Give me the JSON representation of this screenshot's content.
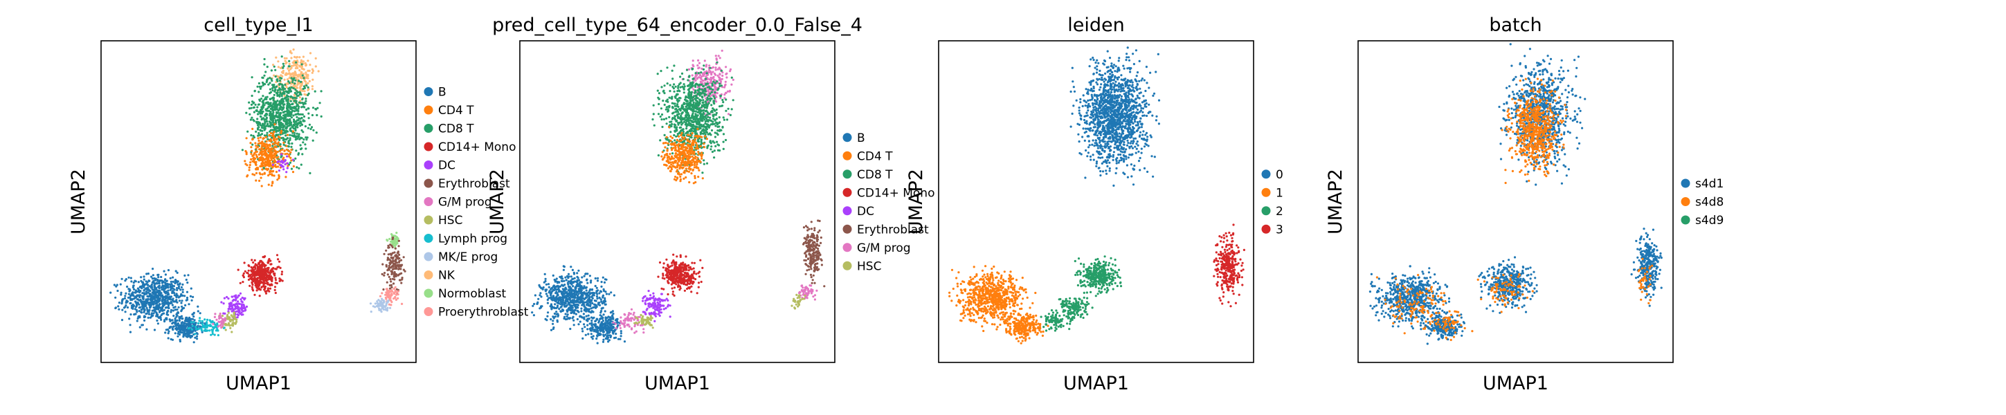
{
  "chart_data": [
    {
      "type": "scatter",
      "title": "cell_type_l1",
      "xlabel": "UMAP1",
      "ylabel": "UMAP2",
      "grid": false,
      "legend": "right",
      "series": [
        {
          "name": "B",
          "color": "#1f77b4"
        },
        {
          "name": "CD4 T",
          "color": "#ff7f0e"
        },
        {
          "name": "CD8 T",
          "color": "#279e68"
        },
        {
          "name": "CD14+ Mono",
          "color": "#d62728"
        },
        {
          "name": "DC",
          "color": "#aa40fc"
        },
        {
          "name": "Erythroblast",
          "color": "#8c564b"
        },
        {
          "name": "G/M prog",
          "color": "#e377c2"
        },
        {
          "name": "HSC",
          "color": "#b5bd61"
        },
        {
          "name": "Lymph prog",
          "color": "#17becf"
        },
        {
          "name": "MK/E prog",
          "color": "#aec7e8"
        },
        {
          "name": "NK",
          "color": "#ffbb78"
        },
        {
          "name": "Normoblast",
          "color": "#98df8a"
        },
        {
          "name": "Proerythroblast",
          "color": "#ff9896"
        }
      ],
      "clusters": [
        {
          "series": "B",
          "cx": 0.17,
          "cy": 0.2,
          "rx": 0.11,
          "ry": 0.08,
          "n": 700
        },
        {
          "series": "B",
          "cx": 0.27,
          "cy": 0.11,
          "rx": 0.06,
          "ry": 0.04,
          "n": 250
        },
        {
          "series": "Lymph prog",
          "cx": 0.34,
          "cy": 0.11,
          "rx": 0.05,
          "ry": 0.03,
          "n": 80
        },
        {
          "series": "NK",
          "cx": 0.62,
          "cy": 0.89,
          "rx": 0.07,
          "ry": 0.08,
          "n": 250
        },
        {
          "series": "CD8 T",
          "cx": 0.57,
          "cy": 0.77,
          "rx": 0.1,
          "ry": 0.14,
          "n": 900
        },
        {
          "series": "CD4 T",
          "cx": 0.53,
          "cy": 0.64,
          "rx": 0.07,
          "ry": 0.08,
          "n": 350
        },
        {
          "series": "DC",
          "cx": 0.58,
          "cy": 0.62,
          "rx": 0.03,
          "ry": 0.03,
          "n": 25
        },
        {
          "series": "CD14+ Mono",
          "cx": 0.51,
          "cy": 0.27,
          "rx": 0.06,
          "ry": 0.05,
          "n": 350
        },
        {
          "series": "DC",
          "cx": 0.43,
          "cy": 0.17,
          "rx": 0.04,
          "ry": 0.04,
          "n": 120
        },
        {
          "series": "HSC",
          "cx": 0.41,
          "cy": 0.13,
          "rx": 0.03,
          "ry": 0.03,
          "n": 60
        },
        {
          "series": "G/M prog",
          "cx": 0.38,
          "cy": 0.13,
          "rx": 0.02,
          "ry": 0.02,
          "n": 30
        },
        {
          "series": "Normoblast",
          "cx": 0.93,
          "cy": 0.38,
          "rx": 0.02,
          "ry": 0.02,
          "n": 50
        },
        {
          "series": "Erythroblast",
          "cx": 0.93,
          "cy": 0.3,
          "rx": 0.03,
          "ry": 0.07,
          "n": 150
        },
        {
          "series": "Proerythroblast",
          "cx": 0.92,
          "cy": 0.21,
          "rx": 0.03,
          "ry": 0.03,
          "n": 60
        },
        {
          "series": "MK/E prog",
          "cx": 0.89,
          "cy": 0.18,
          "rx": 0.03,
          "ry": 0.02,
          "n": 60
        }
      ]
    },
    {
      "type": "scatter",
      "title": "pred_cell_type_64_encoder_0.0_False_4",
      "xlabel": "UMAP1",
      "ylabel": "UMAP2",
      "grid": false,
      "legend": "right",
      "series": [
        {
          "name": "B",
          "color": "#1f77b4"
        },
        {
          "name": "CD4 T",
          "color": "#ff7f0e"
        },
        {
          "name": "CD8 T",
          "color": "#279e68"
        },
        {
          "name": "CD14+ Mono",
          "color": "#d62728"
        },
        {
          "name": "DC",
          "color": "#aa40fc"
        },
        {
          "name": "Erythroblast",
          "color": "#8c564b"
        },
        {
          "name": "G/M prog",
          "color": "#e377c2"
        },
        {
          "name": "HSC",
          "color": "#b5bd61"
        }
      ],
      "clusters": [
        {
          "series": "B",
          "cx": 0.17,
          "cy": 0.2,
          "rx": 0.11,
          "ry": 0.08,
          "n": 700
        },
        {
          "series": "B",
          "cx": 0.27,
          "cy": 0.11,
          "rx": 0.06,
          "ry": 0.04,
          "n": 250
        },
        {
          "series": "G/M prog",
          "cx": 0.35,
          "cy": 0.13,
          "rx": 0.05,
          "ry": 0.03,
          "n": 70
        },
        {
          "series": "G/M prog",
          "cx": 0.6,
          "cy": 0.87,
          "rx": 0.07,
          "ry": 0.08,
          "n": 250
        },
        {
          "series": "CD8 T",
          "cx": 0.55,
          "cy": 0.77,
          "rx": 0.1,
          "ry": 0.14,
          "n": 900
        },
        {
          "series": "CD4 T",
          "cx": 0.52,
          "cy": 0.64,
          "rx": 0.07,
          "ry": 0.08,
          "n": 350
        },
        {
          "series": "CD14+ Mono",
          "cx": 0.51,
          "cy": 0.27,
          "rx": 0.06,
          "ry": 0.05,
          "n": 350
        },
        {
          "series": "DC",
          "cx": 0.43,
          "cy": 0.18,
          "rx": 0.04,
          "ry": 0.04,
          "n": 120
        },
        {
          "series": "HSC",
          "cx": 0.4,
          "cy": 0.13,
          "rx": 0.03,
          "ry": 0.02,
          "n": 50
        },
        {
          "series": "Erythroblast",
          "cx": 0.93,
          "cy": 0.34,
          "rx": 0.03,
          "ry": 0.08,
          "n": 200
        },
        {
          "series": "G/M prog",
          "cx": 0.91,
          "cy": 0.22,
          "rx": 0.03,
          "ry": 0.03,
          "n": 60
        },
        {
          "series": "HSC",
          "cx": 0.88,
          "cy": 0.19,
          "rx": 0.02,
          "ry": 0.02,
          "n": 30
        }
      ]
    },
    {
      "type": "scatter",
      "title": "leiden",
      "xlabel": "UMAP1",
      "ylabel": "UMAP2",
      "grid": false,
      "legend": "right",
      "series": [
        {
          "name": "0",
          "color": "#1f77b4"
        },
        {
          "name": "1",
          "color": "#ff7f0e"
        },
        {
          "name": "2",
          "color": "#279e68"
        },
        {
          "name": "3",
          "color": "#d62728"
        }
      ],
      "clusters": [
        {
          "series": "0",
          "cx": 0.56,
          "cy": 0.77,
          "rx": 0.11,
          "ry": 0.17,
          "n": 1400
        },
        {
          "series": "1",
          "cx": 0.17,
          "cy": 0.2,
          "rx": 0.11,
          "ry": 0.08,
          "n": 700
        },
        {
          "series": "1",
          "cx": 0.27,
          "cy": 0.11,
          "rx": 0.06,
          "ry": 0.04,
          "n": 250
        },
        {
          "series": "2",
          "cx": 0.51,
          "cy": 0.27,
          "rx": 0.06,
          "ry": 0.05,
          "n": 350
        },
        {
          "series": "2",
          "cx": 0.43,
          "cy": 0.17,
          "rx": 0.05,
          "ry": 0.04,
          "n": 150
        },
        {
          "series": "2",
          "cx": 0.37,
          "cy": 0.13,
          "rx": 0.04,
          "ry": 0.03,
          "n": 80
        },
        {
          "series": "3",
          "cx": 0.92,
          "cy": 0.3,
          "rx": 0.04,
          "ry": 0.1,
          "n": 300
        }
      ]
    },
    {
      "type": "scatter",
      "title": "batch",
      "xlabel": "UMAP1",
      "ylabel": "UMAP2",
      "grid": false,
      "legend": "right",
      "series": [
        {
          "name": "s4d1",
          "color": "#1f77b4"
        },
        {
          "name": "s4d8",
          "color": "#ff7f0e"
        },
        {
          "name": "s4d9",
          "color": "#279e68"
        }
      ],
      "clusters": [
        {
          "series": "s4d1",
          "cx": 0.58,
          "cy": 0.77,
          "rx": 0.11,
          "ry": 0.17,
          "n": 800
        },
        {
          "series": "s4d8",
          "cx": 0.56,
          "cy": 0.72,
          "rx": 0.08,
          "ry": 0.13,
          "n": 600
        },
        {
          "series": "s4d1",
          "cx": 0.17,
          "cy": 0.2,
          "rx": 0.11,
          "ry": 0.08,
          "n": 600
        },
        {
          "series": "s4d8",
          "cx": 0.18,
          "cy": 0.18,
          "rx": 0.11,
          "ry": 0.09,
          "n": 120
        },
        {
          "series": "s4d1",
          "cx": 0.27,
          "cy": 0.11,
          "rx": 0.06,
          "ry": 0.04,
          "n": 250
        },
        {
          "series": "s4d8",
          "cx": 0.29,
          "cy": 0.12,
          "rx": 0.06,
          "ry": 0.04,
          "n": 60
        },
        {
          "series": "s4d1",
          "cx": 0.48,
          "cy": 0.24,
          "rx": 0.08,
          "ry": 0.07,
          "n": 400
        },
        {
          "series": "s4d8",
          "cx": 0.47,
          "cy": 0.23,
          "rx": 0.08,
          "ry": 0.06,
          "n": 80
        },
        {
          "series": "s4d1",
          "cx": 0.92,
          "cy": 0.3,
          "rx": 0.04,
          "ry": 0.1,
          "n": 300
        },
        {
          "series": "s4d8",
          "cx": 0.91,
          "cy": 0.26,
          "rx": 0.03,
          "ry": 0.07,
          "n": 40
        }
      ]
    }
  ]
}
